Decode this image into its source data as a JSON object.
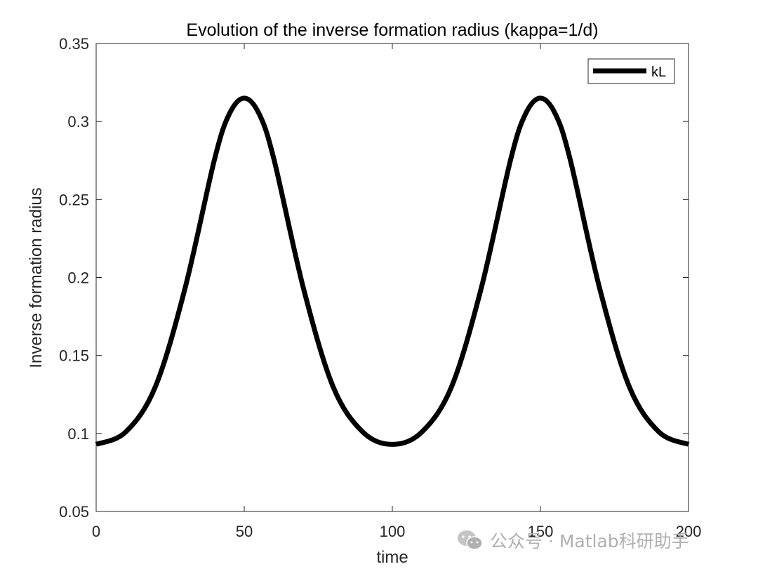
{
  "chart_data": {
    "type": "line",
    "title": "Evolution of the inverse formation radius (kappa=1/d)",
    "xlabel": "time",
    "ylabel": "Inverse formation radius",
    "xlim": [
      0,
      200
    ],
    "ylim": [
      0.05,
      0.35
    ],
    "xticks": [
      0,
      50,
      100,
      150,
      200
    ],
    "yticks": [
      0.05,
      0.1,
      0.15,
      0.2,
      0.25,
      0.3,
      0.35
    ],
    "xtick_labels": [
      "0",
      "50",
      "100",
      "150",
      "200"
    ],
    "ytick_labels": [
      "0.05",
      "0.1",
      "0.15",
      "0.2",
      "0.25",
      "0.3",
      "0.35"
    ],
    "grid": false,
    "legend": {
      "position": "top-right",
      "entries": [
        "kL"
      ]
    },
    "series": [
      {
        "name": "kL",
        "color": "#000000",
        "x": [
          0,
          10,
          20,
          30,
          40,
          45,
          50,
          55,
          60,
          70,
          80,
          90,
          100,
          110,
          120,
          130,
          140,
          145,
          150,
          155,
          160,
          170,
          180,
          190,
          200
        ],
        "y": [
          0.093,
          0.101,
          0.13,
          0.193,
          0.276,
          0.305,
          0.315,
          0.305,
          0.276,
          0.193,
          0.13,
          0.101,
          0.093,
          0.101,
          0.13,
          0.193,
          0.276,
          0.305,
          0.315,
          0.305,
          0.276,
          0.193,
          0.13,
          0.101,
          0.093
        ]
      }
    ]
  },
  "watermark": {
    "text": "公众号 · Matlab科研助手",
    "icon": "wechat-icon"
  }
}
